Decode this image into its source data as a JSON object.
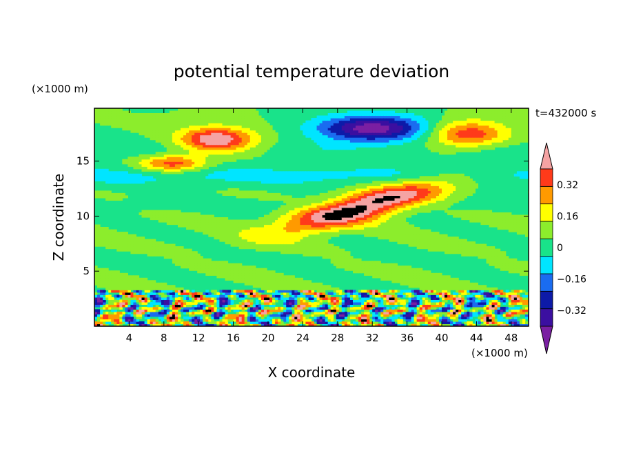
{
  "chart_data": {
    "type": "heatmap",
    "title": "potential temperature deviation",
    "xlabel": "X coordinate",
    "ylabel": "Z coordinate",
    "x_unit": "(×1000 m)",
    "y_unit": "(×1000 m)",
    "time_label": "t=432000 s",
    "xlim": [
      0,
      50
    ],
    "ylim": [
      0,
      19.8
    ],
    "x_ticks": [
      4,
      8,
      12,
      16,
      20,
      24,
      28,
      32,
      36,
      40,
      44,
      48
    ],
    "y_ticks": [
      5,
      10,
      15
    ],
    "colorbar": {
      "levels": [
        -0.4,
        -0.32,
        -0.24,
        -0.16,
        -0.08,
        0,
        0.08,
        0.16,
        0.24,
        0.32,
        0.4
      ],
      "tick_labels": [
        "-0.32",
        "-0.16",
        "0",
        "0.16",
        "0.32"
      ],
      "tick_values": [
        -0.32,
        -0.16,
        0,
        0.16,
        0.32
      ],
      "colors": [
        "#7a1fa2",
        "#3b0fa0",
        "#0d1aa8",
        "#1a6cf0",
        "#00e5ff",
        "#19e38a",
        "#8ced2c",
        "#ffff00",
        "#ff9a00",
        "#ff3a1a",
        "#f5a3a3"
      ],
      "extend": "both"
    }
  }
}
